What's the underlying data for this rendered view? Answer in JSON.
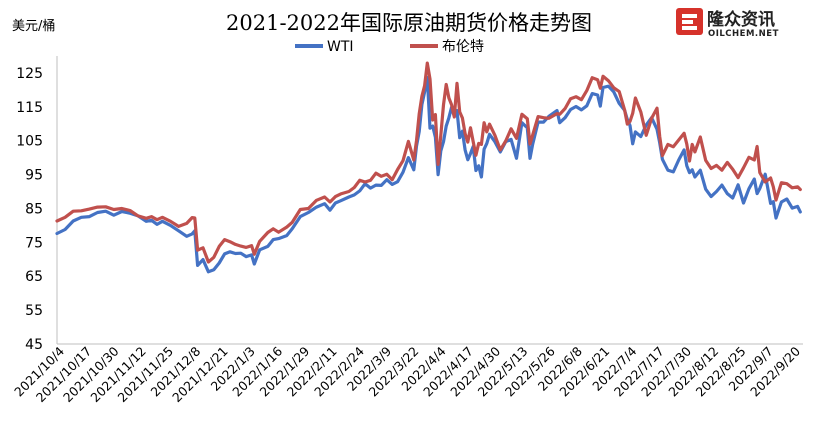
{
  "chart_data": {
    "type": "line",
    "title": "2021-2022年国际原油期货价格走势图",
    "ylabel": "美元/桶",
    "xlabel": "",
    "ylim": [
      45,
      130
    ],
    "yticks": [
      45,
      55,
      65,
      75,
      85,
      95,
      105,
      115,
      125
    ],
    "x_tick_labels": [
      "2021/10/4",
      "2021/10/17",
      "2021/10/30",
      "2021/11/12",
      "2021/11/25",
      "2021/12/8",
      "2021/12/21",
      "2022/1/3",
      "2022/1/16",
      "2022/1/29",
      "2022/2/11",
      "2022/2/24",
      "2022/3/9",
      "2022/3/22",
      "2022/4/4",
      "2022/4/17",
      "2022/4/30",
      "2022/5/13",
      "2022/5/26",
      "2022/6/8",
      "2022/6/21",
      "2022/7/4",
      "2022/7/17",
      "2022/7/30",
      "2022/8/12",
      "2022/8/25",
      "2022/9/7",
      "2022/9/20"
    ],
    "legend_position": "top-center",
    "series": [
      {
        "name": "WTI",
        "color": "#4472C4",
        "points": [
          [
            0,
            77.6
          ],
          [
            3,
            78.8
          ],
          [
            6,
            81.3
          ],
          [
            9,
            82.4
          ],
          [
            12,
            82.6
          ],
          [
            15,
            83.8
          ],
          [
            18,
            84.2
          ],
          [
            21,
            83.0
          ],
          [
            24,
            84.1
          ],
          [
            27,
            83.6
          ],
          [
            30,
            82.8
          ],
          [
            33,
            81.2
          ],
          [
            35,
            81.5
          ],
          [
            37,
            80.3
          ],
          [
            39,
            81.2
          ],
          [
            42,
            80.0
          ],
          [
            45,
            78.4
          ],
          [
            48,
            76.8
          ],
          [
            50,
            77.5
          ],
          [
            51,
            78.4
          ],
          [
            52,
            68.2
          ],
          [
            54,
            69.9
          ],
          [
            56,
            66.3
          ],
          [
            58,
            66.9
          ],
          [
            60,
            68.9
          ],
          [
            62,
            71.6
          ],
          [
            64,
            72.2
          ],
          [
            66,
            71.7
          ],
          [
            68,
            71.8
          ],
          [
            70,
            70.8
          ],
          [
            72,
            71.3
          ],
          [
            73,
            68.6
          ],
          [
            75,
            72.8
          ],
          [
            78,
            73.8
          ],
          [
            80,
            75.8
          ],
          [
            82,
            76.1
          ],
          [
            85,
            77.0
          ],
          [
            87,
            79.0
          ],
          [
            90,
            82.6
          ],
          [
            93,
            83.8
          ],
          [
            96,
            85.4
          ],
          [
            99,
            86.4
          ],
          [
            101,
            84.5
          ],
          [
            103,
            86.6
          ],
          [
            105,
            87.3
          ],
          [
            108,
            88.4
          ],
          [
            110,
            89.0
          ],
          [
            112,
            90.2
          ],
          [
            114,
            92.3
          ],
          [
            116,
            91.0
          ],
          [
            118,
            91.9
          ],
          [
            120,
            91.8
          ],
          [
            122,
            93.5
          ],
          [
            124,
            92.1
          ],
          [
            126,
            92.9
          ],
          [
            128,
            95.7
          ],
          [
            130,
            100.0
          ],
          [
            132,
            96.4
          ],
          [
            133,
            103.4
          ],
          [
            134,
            107.7
          ],
          [
            135,
            115.7
          ],
          [
            136,
            119.4
          ],
          [
            137,
            123.7
          ],
          [
            138,
            108.7
          ],
          [
            139,
            109.3
          ],
          [
            140,
            106.0
          ],
          [
            141,
            95.0
          ],
          [
            142,
            102.0
          ],
          [
            143,
            104.7
          ],
          [
            144,
            109.3
          ],
          [
            145,
            111.8
          ],
          [
            146,
            114.9
          ],
          [
            147,
            112.3
          ],
          [
            148,
            113.9
          ],
          [
            149,
            105.9
          ],
          [
            150,
            107.8
          ],
          [
            151,
            102.3
          ],
          [
            152,
            99.4
          ],
          [
            153,
            101.2
          ],
          [
            154,
            103.3
          ],
          [
            155,
            96.2
          ],
          [
            156,
            97.6
          ],
          [
            157,
            94.3
          ],
          [
            158,
            102.5
          ],
          [
            159,
            104.2
          ],
          [
            160,
            106.9
          ],
          [
            162,
            104.7
          ],
          [
            164,
            101.7
          ],
          [
            166,
            104.7
          ],
          [
            168,
            105.4
          ],
          [
            170,
            99.8
          ],
          [
            172,
            110.3
          ],
          [
            174,
            108.8
          ],
          [
            175,
            99.8
          ],
          [
            176,
            104.0
          ],
          [
            178,
            110.5
          ],
          [
            180,
            110.5
          ],
          [
            182,
            112.2
          ],
          [
            185,
            113.9
          ],
          [
            186,
            110.3
          ],
          [
            188,
            111.8
          ],
          [
            190,
            114.2
          ],
          [
            192,
            115.1
          ],
          [
            194,
            114.1
          ],
          [
            196,
            115.3
          ],
          [
            198,
            118.9
          ],
          [
            200,
            118.5
          ],
          [
            201,
            115.2
          ],
          [
            202,
            120.7
          ],
          [
            204,
            121.1
          ],
          [
            206,
            119.4
          ],
          [
            208,
            116.0
          ],
          [
            210,
            114.0
          ],
          [
            211,
            111.3
          ],
          [
            212,
            109.5
          ],
          [
            213,
            104.1
          ],
          [
            214,
            107.6
          ],
          [
            216,
            106.2
          ],
          [
            218,
            109.6
          ],
          [
            220,
            111.8
          ],
          [
            222,
            108.4
          ],
          [
            223,
            104.4
          ],
          [
            224,
            99.5
          ],
          [
            226,
            96.3
          ],
          [
            228,
            95.8
          ],
          [
            230,
            99.3
          ],
          [
            232,
            102.3
          ],
          [
            233,
            97.6
          ],
          [
            234,
            95.6
          ],
          [
            235,
            96.4
          ],
          [
            236,
            94.3
          ],
          [
            238,
            96.3
          ],
          [
            240,
            90.7
          ],
          [
            242,
            88.5
          ],
          [
            244,
            90.0
          ],
          [
            246,
            91.9
          ],
          [
            248,
            89.4
          ],
          [
            250,
            88.1
          ],
          [
            252,
            92.0
          ],
          [
            254,
            86.6
          ],
          [
            256,
            90.8
          ],
          [
            258,
            93.7
          ],
          [
            259,
            89.4
          ],
          [
            260,
            90.9
          ],
          [
            262,
            95.1
          ],
          [
            264,
            86.5
          ],
          [
            265,
            87.0
          ],
          [
            266,
            82.2
          ],
          [
            268,
            86.9
          ],
          [
            270,
            87.8
          ],
          [
            272,
            85.1
          ],
          [
            274,
            85.6
          ],
          [
            275,
            84.0
          ]
        ]
      },
      {
        "name": "布伦特",
        "color": "#C0504D",
        "points": [
          [
            0,
            81.3
          ],
          [
            3,
            82.4
          ],
          [
            6,
            84.2
          ],
          [
            9,
            84.3
          ],
          [
            12,
            84.8
          ],
          [
            15,
            85.4
          ],
          [
            18,
            85.5
          ],
          [
            21,
            84.7
          ],
          [
            24,
            85.0
          ],
          [
            27,
            84.4
          ],
          [
            30,
            82.8
          ],
          [
            33,
            82.1
          ],
          [
            35,
            82.6
          ],
          [
            37,
            81.7
          ],
          [
            39,
            82.4
          ],
          [
            42,
            81.2
          ],
          [
            45,
            79.7
          ],
          [
            48,
            80.6
          ],
          [
            50,
            82.3
          ],
          [
            51,
            82.2
          ],
          [
            52,
            72.7
          ],
          [
            54,
            73.4
          ],
          [
            56,
            69.2
          ],
          [
            58,
            70.6
          ],
          [
            60,
            73.8
          ],
          [
            62,
            75.8
          ],
          [
            64,
            75.2
          ],
          [
            66,
            74.4
          ],
          [
            68,
            73.9
          ],
          [
            70,
            73.5
          ],
          [
            72,
            74.0
          ],
          [
            73,
            71.5
          ],
          [
            75,
            75.3
          ],
          [
            78,
            77.9
          ],
          [
            80,
            79.0
          ],
          [
            82,
            78.0
          ],
          [
            85,
            79.5
          ],
          [
            87,
            80.9
          ],
          [
            90,
            84.7
          ],
          [
            93,
            85.0
          ],
          [
            96,
            87.4
          ],
          [
            99,
            88.4
          ],
          [
            101,
            86.9
          ],
          [
            103,
            88.5
          ],
          [
            105,
            89.3
          ],
          [
            108,
            90.0
          ],
          [
            110,
            91.2
          ],
          [
            112,
            93.3
          ],
          [
            114,
            92.8
          ],
          [
            116,
            93.3
          ],
          [
            118,
            95.4
          ],
          [
            120,
            94.5
          ],
          [
            122,
            95.1
          ],
          [
            124,
            93.5
          ],
          [
            126,
            96.5
          ],
          [
            128,
            99.1
          ],
          [
            130,
            104.8
          ],
          [
            132,
            99.3
          ],
          [
            133,
            105.0
          ],
          [
            134,
            112.9
          ],
          [
            135,
            118.1
          ],
          [
            136,
            121.2
          ],
          [
            137,
            127.9
          ],
          [
            138,
            123.2
          ],
          [
            139,
            111.1
          ],
          [
            140,
            112.7
          ],
          [
            141,
            98.0
          ],
          [
            142,
            106.6
          ],
          [
            143,
            115.6
          ],
          [
            144,
            121.6
          ],
          [
            145,
            117.6
          ],
          [
            146,
            115.6
          ],
          [
            147,
            112.0
          ],
          [
            148,
            121.9
          ],
          [
            149,
            113.5
          ],
          [
            150,
            111.7
          ],
          [
            151,
            107.1
          ],
          [
            152,
            104.6
          ],
          [
            153,
            108.8
          ],
          [
            154,
            104.7
          ],
          [
            155,
            100.7
          ],
          [
            156,
            104.2
          ],
          [
            157,
            103.9
          ],
          [
            158,
            110.3
          ],
          [
            159,
            107.6
          ],
          [
            160,
            109.9
          ],
          [
            162,
            106.6
          ],
          [
            164,
            102.3
          ],
          [
            166,
            104.9
          ],
          [
            168,
            108.5
          ],
          [
            170,
            105.7
          ],
          [
            172,
            112.8
          ],
          [
            174,
            111.5
          ],
          [
            175,
            104.0
          ],
          [
            176,
            106.7
          ],
          [
            178,
            112.1
          ],
          [
            180,
            111.8
          ],
          [
            182,
            111.6
          ],
          [
            185,
            113.0
          ],
          [
            186,
            112.8
          ],
          [
            188,
            114.5
          ],
          [
            190,
            117.4
          ],
          [
            192,
            118.0
          ],
          [
            194,
            117.1
          ],
          [
            196,
            119.8
          ],
          [
            198,
            123.6
          ],
          [
            200,
            123.0
          ],
          [
            201,
            120.5
          ],
          [
            202,
            124.0
          ],
          [
            204,
            122.7
          ],
          [
            206,
            120.6
          ],
          [
            208,
            119.5
          ],
          [
            210,
            114.1
          ],
          [
            211,
            109.9
          ],
          [
            212,
            110.7
          ],
          [
            213,
            113.1
          ],
          [
            214,
            117.6
          ],
          [
            216,
            113.5
          ],
          [
            218,
            106.6
          ],
          [
            220,
            111.6
          ],
          [
            222,
            114.6
          ],
          [
            223,
            106.3
          ],
          [
            224,
            100.6
          ],
          [
            226,
            103.9
          ],
          [
            228,
            103.2
          ],
          [
            230,
            105.2
          ],
          [
            232,
            107.2
          ],
          [
            233,
            104.0
          ],
          [
            234,
            99.0
          ],
          [
            235,
            103.9
          ],
          [
            236,
            101.7
          ],
          [
            238,
            106.1
          ],
          [
            240,
            99.2
          ],
          [
            242,
            96.8
          ],
          [
            244,
            97.7
          ],
          [
            246,
            96.3
          ],
          [
            248,
            98.6
          ],
          [
            250,
            96.6
          ],
          [
            252,
            94.1
          ],
          [
            254,
            97.0
          ],
          [
            256,
            100.1
          ],
          [
            258,
            99.3
          ],
          [
            259,
            103.3
          ],
          [
            260,
            95.6
          ],
          [
            262,
            92.8
          ],
          [
            264,
            94.0
          ],
          [
            265,
            91.4
          ],
          [
            266,
            87.5
          ],
          [
            268,
            92.6
          ],
          [
            270,
            92.3
          ],
          [
            272,
            91.1
          ],
          [
            274,
            91.4
          ],
          [
            275,
            90.6
          ]
        ]
      }
    ],
    "x_max_index": 276
  },
  "logo": {
    "cn_text": "隆众资讯",
    "en_text": "OILCHEM.NET"
  }
}
